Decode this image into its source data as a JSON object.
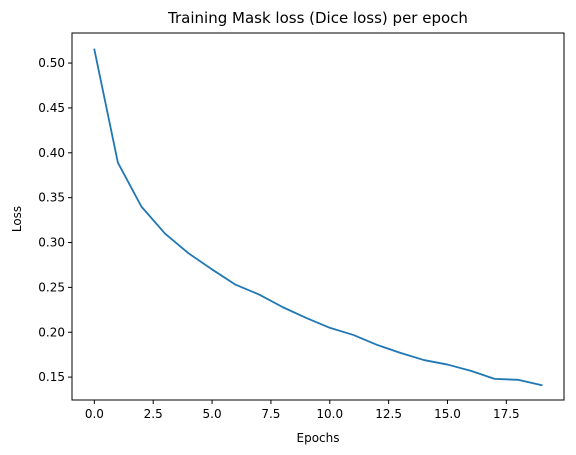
{
  "chart_data": {
    "type": "line",
    "title": "Training Mask loss (Dice loss) per epoch",
    "xlabel": "Epochs",
    "ylabel": "Loss",
    "xlim": [
      -0.95,
      19.95
    ],
    "ylim": [
      0.1245,
      0.5335
    ],
    "xticks": [
      0,
      2.5,
      5,
      7.5,
      10,
      12.5,
      15,
      17.5
    ],
    "xtick_labels": [
      "0.0",
      "2.5",
      "5.0",
      "7.5",
      "10.0",
      "12.5",
      "15.0",
      "17.5"
    ],
    "yticks": [
      0.15,
      0.2,
      0.25,
      0.3,
      0.35,
      0.4,
      0.45,
      0.5
    ],
    "ytick_labels": [
      "0.15",
      "0.20",
      "0.25",
      "0.30",
      "0.35",
      "0.40",
      "0.45",
      "0.50"
    ],
    "grid": false,
    "series": [
      {
        "color": "#1f77b4",
        "x": [
          0,
          1,
          2,
          3,
          4,
          5,
          6,
          7,
          8,
          9,
          10,
          11,
          12,
          13,
          14,
          15,
          16,
          17,
          18,
          19
        ],
        "y": [
          0.515,
          0.389,
          0.34,
          0.31,
          0.288,
          0.27,
          0.253,
          0.242,
          0.228,
          0.216,
          0.205,
          0.197,
          0.186,
          0.177,
          0.169,
          0.164,
          0.157,
          0.148,
          0.147,
          0.141
        ]
      }
    ]
  }
}
